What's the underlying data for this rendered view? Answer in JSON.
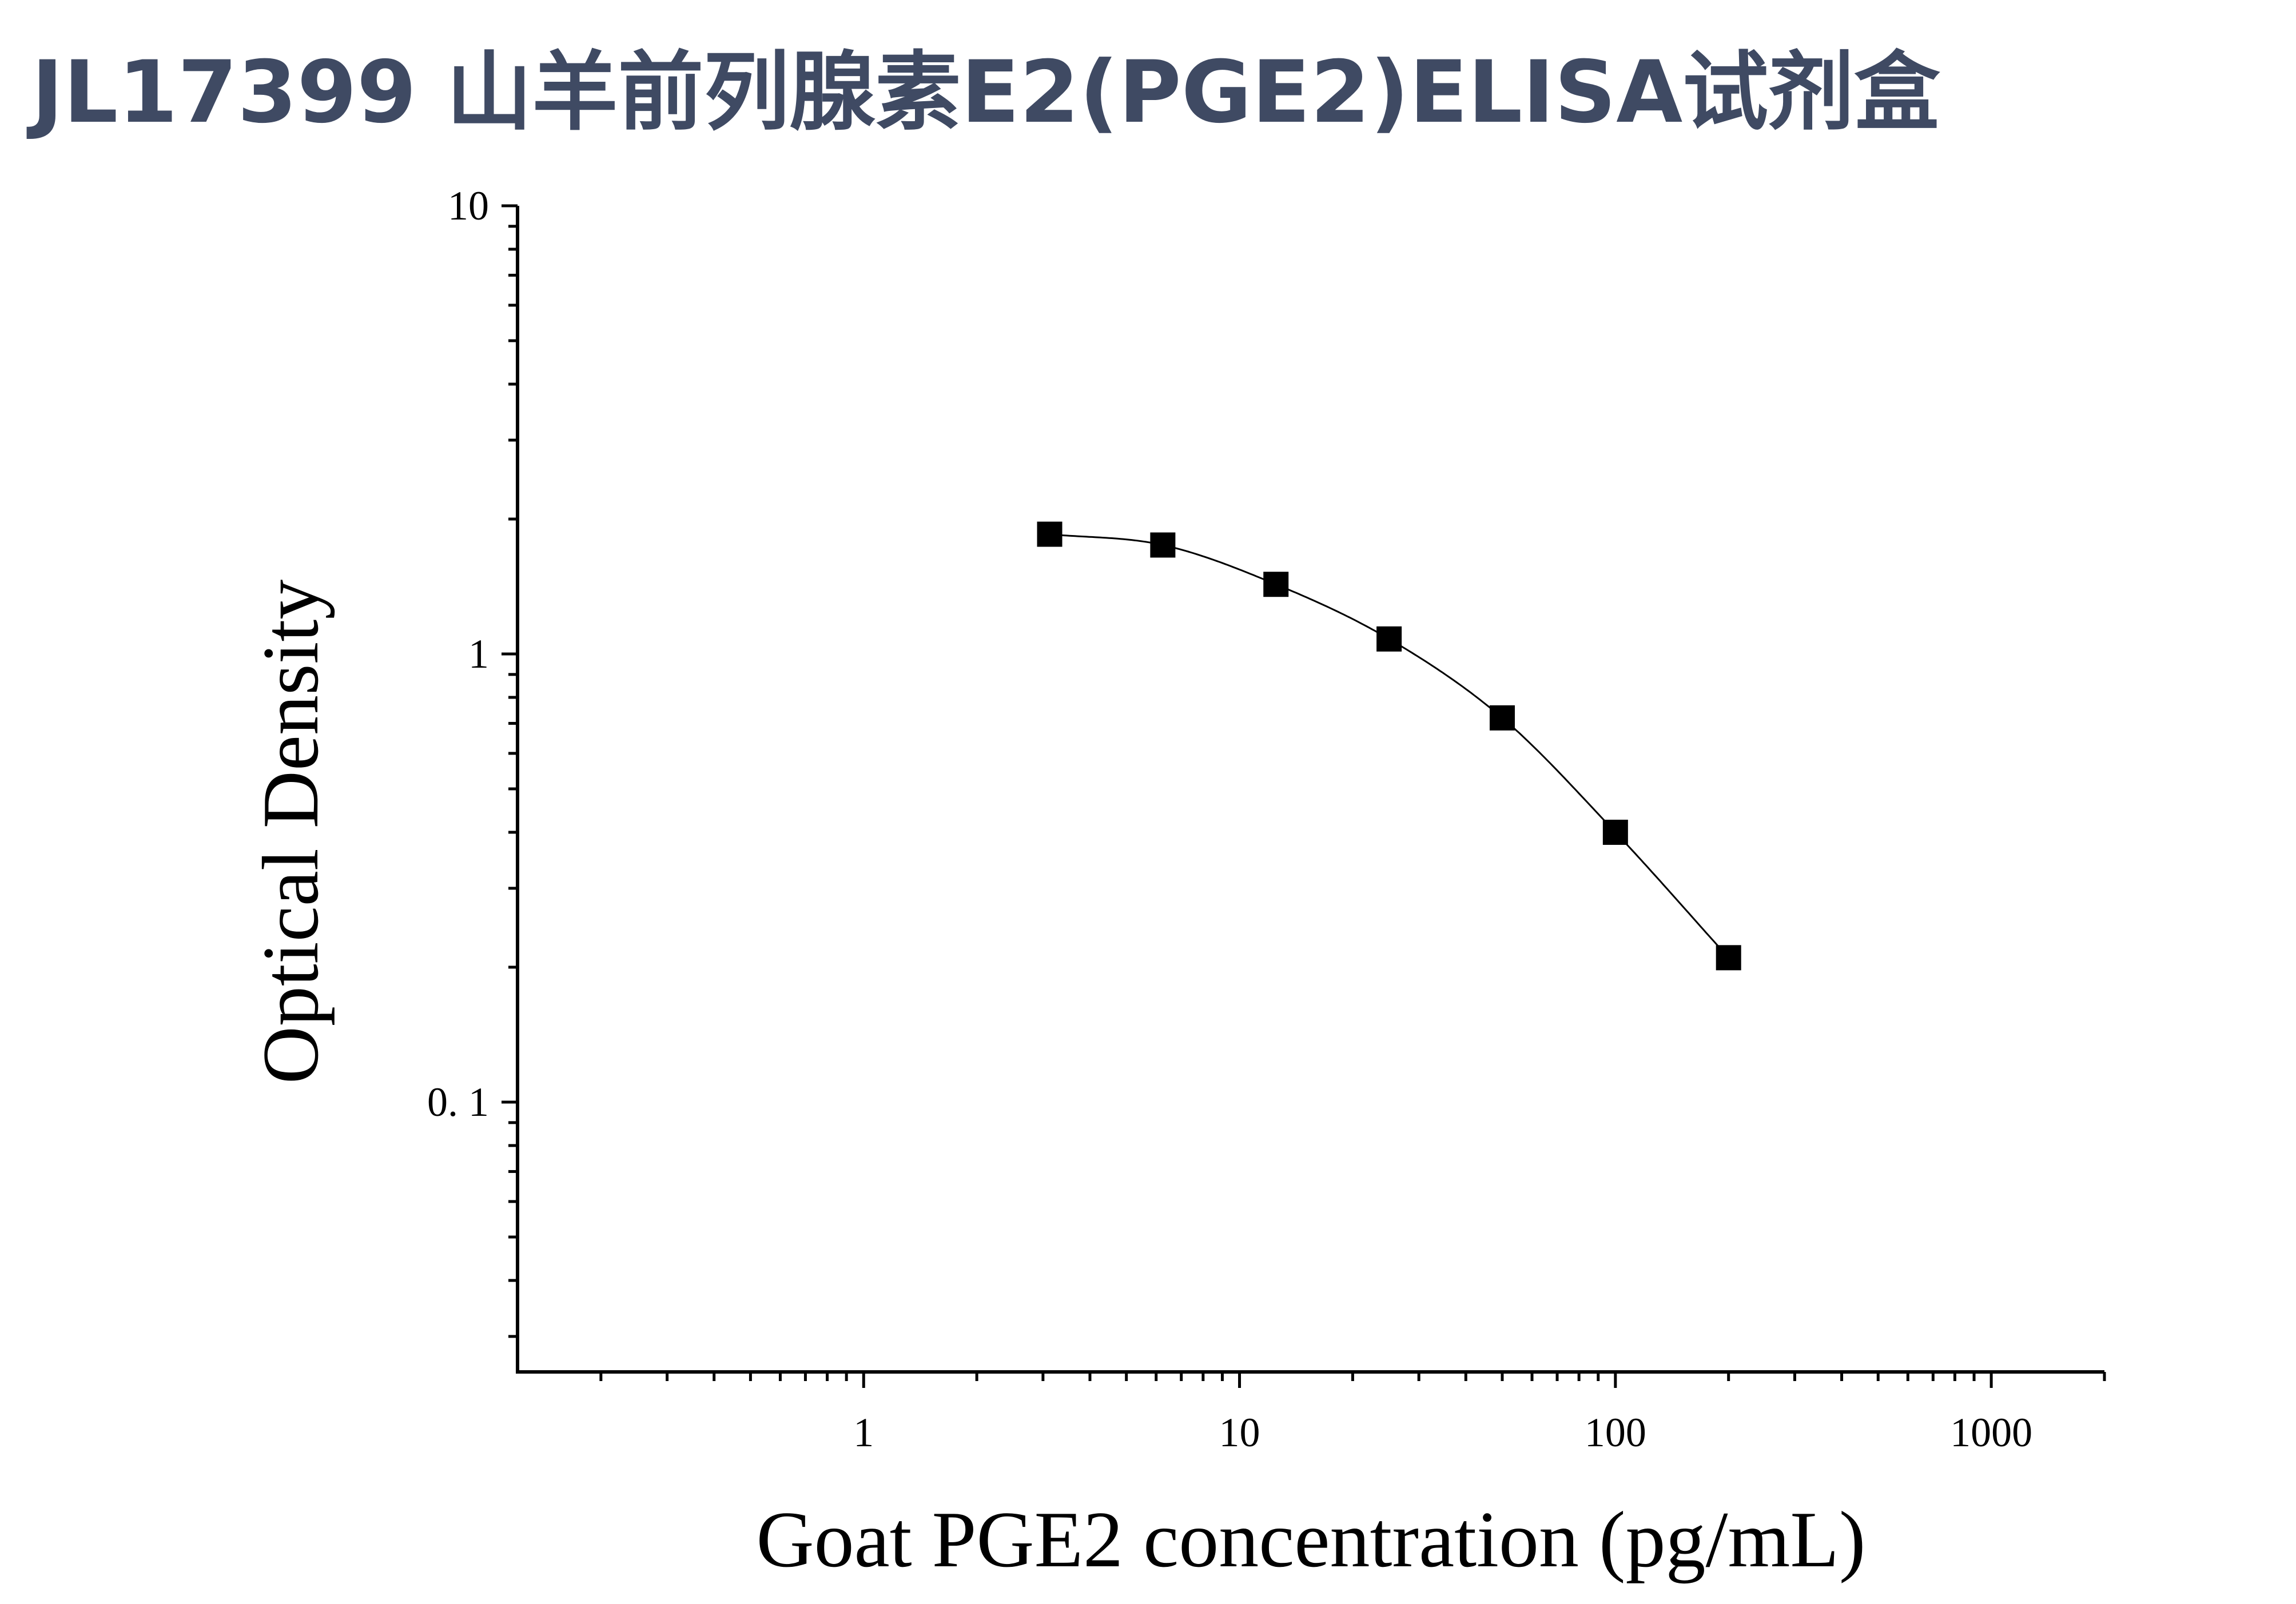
{
  "page": {
    "title": "JL17399 山羊前列腺素E2(PGE2)ELISA试剂盒"
  },
  "colors": {
    "title": "#3f4a63",
    "axis": "#000000",
    "marker": "#000000",
    "curve": "#000000"
  },
  "chart_data": {
    "type": "scatter",
    "title": "",
    "xlabel": "Goat PGE2 concentration (pg/mL)",
    "ylabel": "Optical Density",
    "xscale": "log",
    "yscale": "log",
    "xlim": [
      0.12,
      2000
    ],
    "ylim": [
      0.025,
      10
    ],
    "x_ticks": [
      1,
      10,
      100,
      1000
    ],
    "x_tick_labels": [
      "1",
      "10",
      "100",
      "1000"
    ],
    "y_ticks": [
      0.1,
      1,
      10
    ],
    "y_tick_labels": [
      "0. 1",
      "1",
      "10"
    ],
    "grid": false,
    "legend": "none",
    "marker": "square",
    "fit_curve": true,
    "series": [
      {
        "x": [
          3.125,
          6.25,
          12.5,
          25,
          50,
          100,
          200
        ],
        "y": [
          1.85,
          1.75,
          1.43,
          1.08,
          0.72,
          0.4,
          0.21
        ]
      }
    ]
  }
}
